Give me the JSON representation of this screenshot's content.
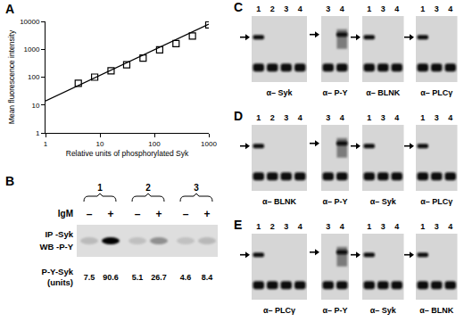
{
  "panel_labels": [
    "A",
    "B",
    "C",
    "D",
    "E"
  ],
  "chart_data": {
    "type": "line",
    "log": true,
    "grid": false,
    "x_label": "Relative units of phosphorylated Syk",
    "y_label": "Mean fluorescence intensity",
    "xlim": [
      1,
      1000
    ],
    "ylim": [
      1,
      10000
    ],
    "xticks": [
      1,
      10,
      100,
      1000
    ],
    "yticks": [
      1,
      10,
      100,
      1000,
      10000
    ],
    "series": [
      {
        "type": "line",
        "line_style": "solid",
        "color": "#000000",
        "x": [
          1,
          1000
        ],
        "values": [
          14,
          8000
        ]
      },
      {
        "type": "scatter",
        "marker": "square-open",
        "color": "#000000",
        "x": [
          4,
          8,
          16,
          31,
          62,
          125,
          250,
          500,
          1000
        ],
        "values": [
          60,
          100,
          170,
          280,
          480,
          950,
          1600,
          3000,
          7500
        ]
      }
    ]
  },
  "panel_B": {
    "groups": [
      "1",
      "2",
      "3"
    ],
    "treatment_label": "IgM",
    "treatments": [
      "–",
      "+",
      "–",
      "+",
      "–",
      "+"
    ],
    "row_labels": [
      "IP -Syk",
      "WB -P-Y"
    ],
    "quant_label": "P-Y-Syk (units)",
    "quant_values": [
      7.5,
      90.6,
      5.1,
      26.7,
      4.6,
      8.4
    ]
  },
  "panels_CDE": [
    {
      "blots": [
        {
          "lanes": [
            "1",
            "2",
            "3",
            "4"
          ],
          "antibody": "α– Syk"
        },
        {
          "lanes": [
            "3",
            "4"
          ],
          "antibody": "α– P-Y"
        },
        {
          "lanes": [
            "1",
            "3",
            "4"
          ],
          "antibody": "α– BLNK"
        },
        {
          "lanes": [
            "1",
            "3",
            "4"
          ],
          "antibody": "α– PLCγ"
        }
      ]
    },
    {
      "blots": [
        {
          "lanes": [
            "1",
            "2",
            "3",
            "4"
          ],
          "antibody": "α– BLNK"
        },
        {
          "lanes": [
            "3",
            "4"
          ],
          "antibody": "α– P-Y"
        },
        {
          "lanes": [
            "1",
            "3",
            "4"
          ],
          "antibody": "α– Syk"
        },
        {
          "lanes": [
            "1",
            "3",
            "4"
          ],
          "antibody": "α– PLCγ"
        }
      ]
    },
    {
      "blots": [
        {
          "lanes": [
            "1",
            "2",
            "3",
            "4"
          ],
          "antibody": "α– PLCγ"
        },
        {
          "lanes": [
            "3",
            "4"
          ],
          "antibody": "α– P-Y"
        },
        {
          "lanes": [
            "1",
            "3",
            "4"
          ],
          "antibody": "α– Syk"
        },
        {
          "lanes": [
            "1",
            "3",
            "4"
          ],
          "antibody": "α– BLNK"
        }
      ]
    }
  ]
}
